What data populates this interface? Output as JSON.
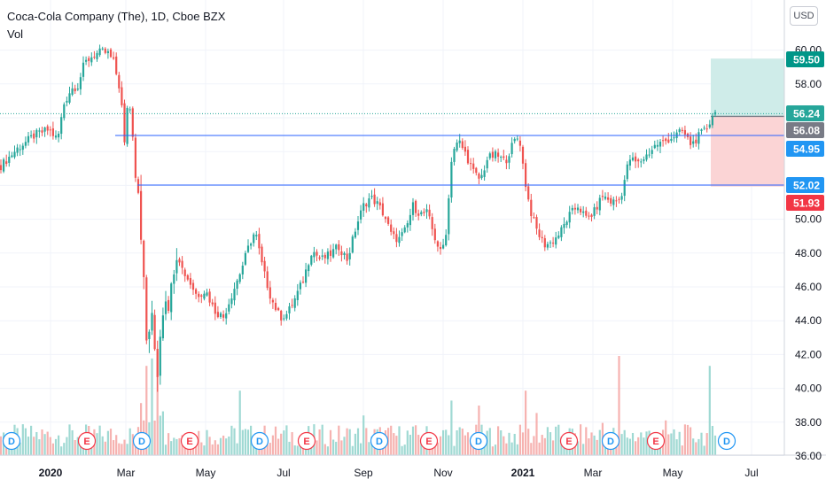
{
  "header": {
    "title": "Coca-Cola Company (The), 1D, Cboe BZX",
    "volume_label": "Vol",
    "currency": "USD"
  },
  "colors": {
    "up": "#26a69a",
    "down": "#ef5350",
    "up_volume": "#9fd9d3",
    "down_volume": "#f6b2b0",
    "level_line": "#2962ff",
    "last_price": "#26a69a",
    "target": "#009688",
    "stop": "#f23645",
    "profit_zone": "#cfece9",
    "loss_zone": "#fbd4d5",
    "entry_tag": "#787b86",
    "level_tag": "#2196f3"
  },
  "chart_data": {
    "type": "candlestick",
    "title": "Coca-Cola Company (The), 1D, Cboe BZX",
    "y_axis": {
      "min": 36,
      "max": 60,
      "step": 2,
      "position": "right"
    },
    "x_tick_labels": [
      "2020",
      "Mar",
      "May",
      "Jul",
      "Sep",
      "Nov",
      "2021",
      "Mar",
      "May",
      "Jul"
    ],
    "y_tick_labels": [
      "36.00",
      "38.00",
      "40.00",
      "42.00",
      "44.00",
      "46.00",
      "48.00",
      "50.00",
      "52.00",
      "54.00",
      "56.00",
      "58.00",
      "60.00"
    ],
    "price_path": [
      {
        "t": 0,
        "p": 53.1
      },
      {
        "t": 20,
        "p": 54.2
      },
      {
        "t": 40,
        "p": 55.0
      },
      {
        "t": 55,
        "p": 55.3
      },
      {
        "t": 65,
        "p": 54.7
      },
      {
        "t": 72,
        "p": 56.8
      },
      {
        "t": 80,
        "p": 57.7
      },
      {
        "t": 88,
        "p": 57.9
      },
      {
        "t": 95,
        "p": 59.2
      },
      {
        "t": 105,
        "p": 59.7
      },
      {
        "t": 115,
        "p": 59.9
      },
      {
        "t": 122,
        "p": 59.8
      },
      {
        "t": 128,
        "p": 59.3
      },
      {
        "t": 134,
        "p": 58.0
      },
      {
        "t": 138,
        "p": 56.4
      },
      {
        "t": 141,
        "p": 54.0
      },
      {
        "t": 144,
        "p": 57.1
      },
      {
        "t": 148,
        "p": 56.2
      },
      {
        "t": 153,
        "p": 53.0
      },
      {
        "t": 157,
        "p": 51.5
      },
      {
        "t": 160,
        "p": 48.5
      },
      {
        "t": 163,
        "p": 45.2
      },
      {
        "t": 166,
        "p": 42.0
      },
      {
        "t": 170,
        "p": 44.5
      },
      {
        "t": 174,
        "p": 42.8
      },
      {
        "t": 177,
        "p": 40.6
      },
      {
        "t": 181,
        "p": 43.5
      },
      {
        "t": 186,
        "p": 45.8
      },
      {
        "t": 192,
        "p": 45.0
      },
      {
        "t": 198,
        "p": 48.5
      },
      {
        "t": 206,
        "p": 47.0
      },
      {
        "t": 214,
        "p": 46.3
      },
      {
        "t": 222,
        "p": 45.5
      },
      {
        "t": 232,
        "p": 45.8
      },
      {
        "t": 242,
        "p": 44.6
      },
      {
        "t": 252,
        "p": 44.2
      },
      {
        "t": 262,
        "p": 45.6
      },
      {
        "t": 272,
        "p": 47.0
      },
      {
        "t": 282,
        "p": 48.6
      },
      {
        "t": 288,
        "p": 49.3
      },
      {
        "t": 296,
        "p": 47.2
      },
      {
        "t": 306,
        "p": 45.3
      },
      {
        "t": 316,
        "p": 44.2
      },
      {
        "t": 324,
        "p": 44.4
      },
      {
        "t": 332,
        "p": 45.2
      },
      {
        "t": 342,
        "p": 46.4
      },
      {
        "t": 352,
        "p": 48.2
      },
      {
        "t": 362,
        "p": 47.6
      },
      {
        "t": 372,
        "p": 47.9
      },
      {
        "t": 382,
        "p": 48.4
      },
      {
        "t": 392,
        "p": 47.6
      },
      {
        "t": 402,
        "p": 49.6
      },
      {
        "t": 410,
        "p": 50.8
      },
      {
        "t": 418,
        "p": 51.3
      },
      {
        "t": 426,
        "p": 50.9
      },
      {
        "t": 434,
        "p": 50.2
      },
      {
        "t": 442,
        "p": 49.0
      },
      {
        "t": 450,
        "p": 48.8
      },
      {
        "t": 458,
        "p": 49.4
      },
      {
        "t": 466,
        "p": 50.8
      },
      {
        "t": 474,
        "p": 50.3
      },
      {
        "t": 482,
        "p": 50.4
      },
      {
        "t": 490,
        "p": 49.0
      },
      {
        "t": 498,
        "p": 47.9
      },
      {
        "t": 504,
        "p": 49.5
      },
      {
        "t": 510,
        "p": 54.0
      },
      {
        "t": 518,
        "p": 54.6
      },
      {
        "t": 526,
        "p": 53.8
      },
      {
        "t": 534,
        "p": 52.8
      },
      {
        "t": 542,
        "p": 52.3
      },
      {
        "t": 550,
        "p": 53.6
      },
      {
        "t": 560,
        "p": 53.8
      },
      {
        "t": 570,
        "p": 53.4
      },
      {
        "t": 580,
        "p": 54.6
      },
      {
        "t": 586,
        "p": 54.9
      },
      {
        "t": 592,
        "p": 52.4
      },
      {
        "t": 598,
        "p": 50.6
      },
      {
        "t": 606,
        "p": 49.3
      },
      {
        "t": 614,
        "p": 48.5
      },
      {
        "t": 622,
        "p": 48.6
      },
      {
        "t": 632,
        "p": 49.2
      },
      {
        "t": 642,
        "p": 50.2
      },
      {
        "t": 652,
        "p": 50.8
      },
      {
        "t": 662,
        "p": 50.0
      },
      {
        "t": 670,
        "p": 50.4
      },
      {
        "t": 680,
        "p": 51.4
      },
      {
        "t": 690,
        "p": 51.0
      },
      {
        "t": 700,
        "p": 51.2
      },
      {
        "t": 710,
        "p": 53.6
      },
      {
        "t": 720,
        "p": 53.3
      },
      {
        "t": 730,
        "p": 53.8
      },
      {
        "t": 740,
        "p": 54.4
      },
      {
        "t": 750,
        "p": 54.6
      },
      {
        "t": 760,
        "p": 54.9
      },
      {
        "t": 770,
        "p": 55.2
      },
      {
        "t": 780,
        "p": 54.4
      },
      {
        "t": 790,
        "p": 55.0
      },
      {
        "t": 798,
        "p": 55.4
      },
      {
        "t": 805,
        "p": 56.3
      },
      {
        "t": 810,
        "p": 56.24
      }
    ],
    "volume_spikes": [
      {
        "t": 166,
        "v": 3.6
      },
      {
        "t": 171,
        "v": 3.9
      },
      {
        "t": 177,
        "v": 4.2
      },
      {
        "t": 160,
        "v": 2.1
      },
      {
        "t": 272,
        "v": 2.6
      },
      {
        "t": 410,
        "v": 1.6
      },
      {
        "t": 508,
        "v": 2.2
      },
      {
        "t": 541,
        "v": 2.0
      },
      {
        "t": 592,
        "v": 2.6
      },
      {
        "t": 606,
        "v": 1.7
      },
      {
        "t": 698,
        "v": 4.0
      },
      {
        "t": 800,
        "v": 3.6
      },
      {
        "t": 681,
        "v": 1.3
      },
      {
        "t": 752,
        "v": 1.4
      }
    ],
    "horizontal_levels": [
      54.95,
      52.02
    ],
    "price_tags": [
      {
        "value": 59.5,
        "label": "59.50",
        "kind": "target"
      },
      {
        "value": 56.24,
        "label": "56.24",
        "kind": "last"
      },
      {
        "value": 56.08,
        "label": "56.08",
        "kind": "entry"
      },
      {
        "value": 54.95,
        "label": "54.95",
        "kind": "level"
      },
      {
        "value": 52.02,
        "label": "52.02",
        "kind": "level"
      },
      {
        "value": 51.93,
        "label": "51.93",
        "kind": "stop"
      }
    ],
    "position": {
      "entry": 56.08,
      "target": 59.5,
      "stop": 51.93
    },
    "events": [
      "D",
      "E",
      "D",
      "E",
      "D",
      "E",
      "D",
      "E",
      "D",
      "E",
      "D",
      "E",
      "D"
    ]
  }
}
